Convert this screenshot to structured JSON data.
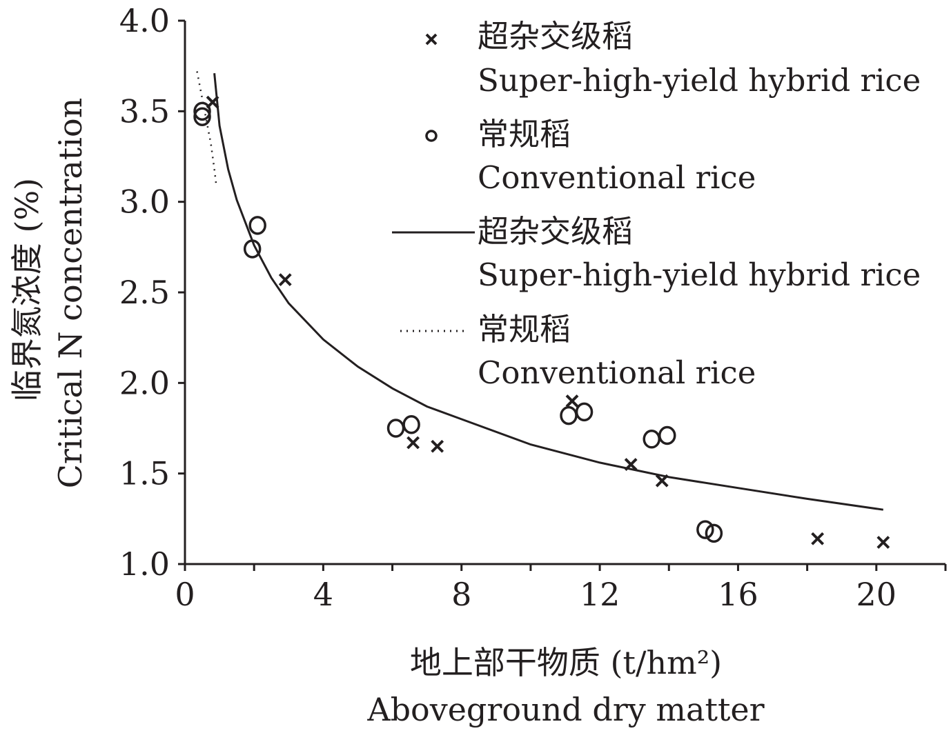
{
  "chart_data": {
    "type": "scatter",
    "xlim": [
      0,
      22
    ],
    "ylim": [
      1.0,
      4.0
    ],
    "x_ticks": [
      0,
      4,
      8,
      12,
      16,
      20
    ],
    "y_ticks": [
      1.0,
      1.5,
      2.0,
      2.5,
      3.0,
      3.5,
      4.0
    ],
    "x_tick_labels": [
      "0",
      "4",
      "8",
      "12",
      "16",
      "20"
    ],
    "y_tick_labels": [
      "1.0",
      "1.5",
      "2.0",
      "2.5",
      "3.0",
      "3.5",
      "4.0"
    ],
    "xlabel_cn": "地上部干物质 (t/hm²)",
    "xlabel_en": "Aboveground dry matter",
    "ylabel_cn": "临界氮浓度 (%)",
    "ylabel_en": "Critical N concentration",
    "grid": false,
    "legend_position": "top-right",
    "series": [
      {
        "name": "超杂交级稻 Super-high-yield hybrid rice",
        "kind": "points",
        "marker": "x",
        "x": [
          0.8,
          2.9,
          6.6,
          7.3,
          11.2,
          12.9,
          13.8,
          18.3,
          20.2
        ],
        "y": [
          3.55,
          2.57,
          1.67,
          1.65,
          1.9,
          1.55,
          1.46,
          1.14,
          1.12
        ]
      },
      {
        "name": "常规稻 Conventional rice",
        "kind": "points",
        "marker": "o",
        "x": [
          0.5,
          0.5,
          1.95,
          2.1,
          6.1,
          6.55,
          11.1,
          11.55,
          13.5,
          13.95,
          15.05,
          15.3
        ],
        "y": [
          3.5,
          3.47,
          2.74,
          2.87,
          1.75,
          1.77,
          1.82,
          1.84,
          1.69,
          1.71,
          1.19,
          1.17
        ]
      },
      {
        "name": "超杂交级稻 Super-high-yield hybrid rice",
        "kind": "line",
        "style": "solid",
        "x": [
          0.85,
          1.0,
          1.25,
          1.5,
          2.0,
          2.5,
          3.0,
          4.0,
          5.0,
          6.0,
          7.0,
          8.0,
          10.0,
          12.0,
          14.0,
          16.0,
          18.0,
          20.2
        ],
        "y": [
          3.71,
          3.42,
          3.18,
          3.01,
          2.76,
          2.58,
          2.44,
          2.24,
          2.09,
          1.97,
          1.87,
          1.8,
          1.66,
          1.56,
          1.48,
          1.42,
          1.36,
          1.3
        ]
      },
      {
        "name": "常规稻 Conventional rice",
        "kind": "line",
        "style": "dotted",
        "x": [
          0.35,
          0.45,
          0.55,
          0.65,
          0.75,
          0.85,
          0.9
        ],
        "y": [
          3.72,
          3.62,
          3.52,
          3.42,
          3.32,
          3.18,
          3.1
        ]
      }
    ]
  },
  "legend": [
    {
      "cn": "超杂交级稻",
      "en": "Super-high-yield hybrid rice",
      "symbol": "x"
    },
    {
      "cn": "常规稻",
      "en": "Conventional rice",
      "symbol": "o"
    },
    {
      "cn": "超杂交级稻",
      "en": "Super-high-yield hybrid rice",
      "symbol": "solid-line"
    },
    {
      "cn": "常规稻",
      "en": "Conventional rice",
      "symbol": "dotted-line"
    }
  ],
  "colors": {
    "ink": "#231f20",
    "background": "#ffffff"
  }
}
